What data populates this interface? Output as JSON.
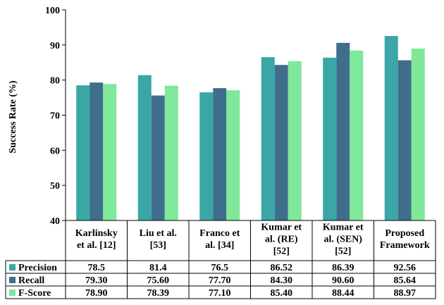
{
  "chart_data": {
    "type": "bar",
    "categories": [
      "Karlinsky et al. [12]",
      "Liu et al. [53]",
      "Franco et al. [34]",
      "Kumar et al. (RE) [52]",
      "Kumar et al. (SEN) [52]",
      "Proposed Framework"
    ],
    "category_lines": [
      [
        "Karlinsky",
        "et al. [12]"
      ],
      [
        "Liu et al.",
        "[53]"
      ],
      [
        "Franco et",
        "al. [34]"
      ],
      [
        "Kumar et",
        "al. (RE)",
        "[52]"
      ],
      [
        "Kumar et",
        "al. (SEN)",
        "[52]"
      ],
      [
        "Proposed",
        "Framework"
      ]
    ],
    "series": [
      {
        "name": "Precision",
        "color": "#3aa6a6",
        "values": [
          78.5,
          81.4,
          76.5,
          86.52,
          86.39,
          92.56
        ],
        "labels": [
          "78.5",
          "81.4",
          "76.5",
          "86.52",
          "86.39",
          "92.56"
        ]
      },
      {
        "name": "Recall",
        "color": "#3f6e8c",
        "values": [
          79.3,
          75.6,
          77.7,
          84.3,
          90.6,
          85.64
        ],
        "labels": [
          "79.30",
          "75.60",
          "77.70",
          "84.30",
          "90.60",
          "85.64"
        ]
      },
      {
        "name": "F-Score",
        "color": "#7fe89a",
        "values": [
          78.9,
          78.39,
          77.1,
          85.4,
          88.44,
          88.97
        ],
        "labels": [
          "78.90",
          "78.39",
          "77.10",
          "85.40",
          "88.44",
          "88.97"
        ]
      }
    ],
    "ylabel": "Success Rate (%)",
    "ylim": [
      40,
      100
    ],
    "yticks": [
      "40",
      "50",
      "60",
      "70",
      "80",
      "90",
      "100"
    ],
    "grid": false,
    "legend": "data-table"
  }
}
